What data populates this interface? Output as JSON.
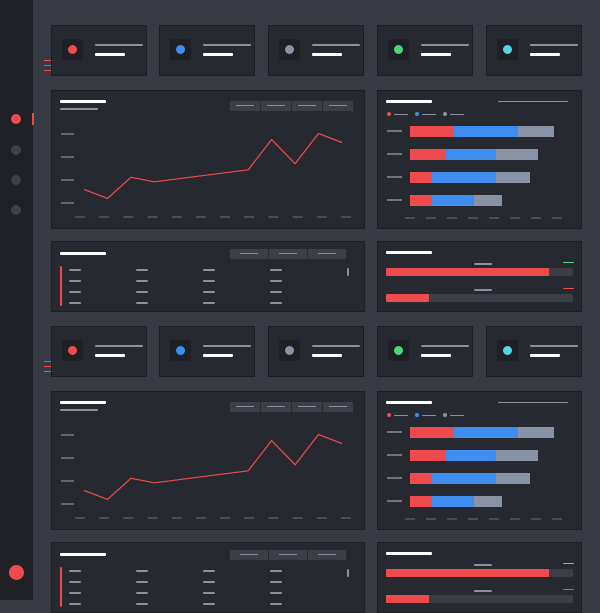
{
  "colors": {
    "background": "#373a42",
    "card": "#262930",
    "sidebar": "#1f2127",
    "accent_red": "#f04b4c",
    "accent_blue": "#3d8ef0",
    "accent_gray": "#8a93a6",
    "accent_green": "#4ed47f",
    "accent_cyan": "#55d6e6"
  },
  "sidebar": {
    "items": [
      {
        "name": "nav-item-1",
        "state": "active"
      },
      {
        "name": "nav-item-2",
        "state": "inactive"
      },
      {
        "name": "nav-item-3",
        "state": "inactive"
      },
      {
        "name": "nav-item-4",
        "state": "inactive"
      }
    ]
  },
  "stat_cards": [
    {
      "icon": "red-dot-icon",
      "color": "#f04b4c"
    },
    {
      "icon": "blue-dot-icon",
      "color": "#3d8ef0"
    },
    {
      "icon": "gray-dot-icon",
      "color": "#8a93a6"
    },
    {
      "icon": "green-dot-icon",
      "color": "#4ed47f"
    },
    {
      "icon": "cyan-dot-icon",
      "color": "#55d6e6"
    }
  ],
  "chart_data": [
    {
      "type": "line",
      "title": "",
      "xlabel": "",
      "ylabel": "",
      "x": [
        1,
        2,
        3,
        4,
        5,
        6,
        7,
        8,
        9,
        10,
        11,
        12
      ],
      "series": [
        {
          "values": [
            1.3,
            0.7,
            2.1,
            1.8,
            2.0,
            2.2,
            2.4,
            2.6,
            4.6,
            3.0,
            5.0,
            4.4
          ]
        }
      ],
      "ylim": [
        0,
        5.5
      ],
      "grid": false,
      "color": "#f04b4c"
    },
    {
      "type": "bar",
      "stacked": true,
      "orientation": "horizontal",
      "categories": [
        "",
        "",
        "",
        ""
      ],
      "series": [
        {
          "color": "#f04b4c",
          "values": [
            44,
            36,
            22,
            22
          ]
        },
        {
          "color": "#3d8ef0",
          "values": [
            64,
            50,
            64,
            42
          ]
        },
        {
          "color": "#8a93a6",
          "values": [
            36,
            42,
            34,
            28
          ]
        }
      ],
      "legend": "top-left"
    },
    {
      "type": "line",
      "title": "",
      "x": [
        1,
        2,
        3,
        4,
        5,
        6,
        7,
        8,
        9,
        10,
        11,
        12
      ],
      "series": [
        {
          "values": [
            1.3,
            0.7,
            2.1,
            1.8,
            2.0,
            2.2,
            2.4,
            2.6,
            4.6,
            3.0,
            5.0,
            4.4
          ]
        }
      ],
      "ylim": [
        0,
        5.5
      ],
      "grid": false,
      "color": "#f04b4c"
    },
    {
      "type": "bar",
      "stacked": true,
      "orientation": "horizontal",
      "categories": [
        "",
        "",
        "",
        ""
      ],
      "series": [
        {
          "color": "#f04b4c",
          "values": [
            44,
            36,
            22,
            22
          ]
        },
        {
          "color": "#3d8ef0",
          "values": [
            64,
            50,
            64,
            42
          ]
        },
        {
          "color": "#8a93a6",
          "values": [
            36,
            42,
            34,
            28
          ]
        }
      ],
      "legend": "top-left"
    }
  ],
  "progress": [
    {
      "value": 0.87,
      "color": "#f04b4c",
      "indicator": "#4ed47f"
    },
    {
      "value": 0.23,
      "color": "#f04b4c",
      "indicator": "#f04b4c"
    }
  ]
}
